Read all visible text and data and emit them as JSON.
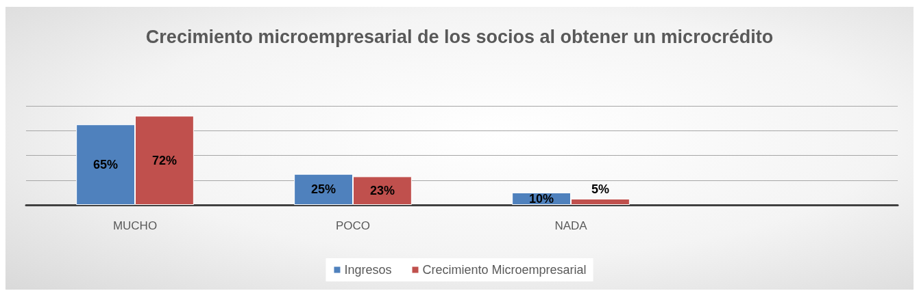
{
  "chart_data": {
    "type": "bar",
    "title": "Crecimiento microempresarial de los socios al obtener un microcrédito",
    "categories": [
      "MUCHO",
      "POCO",
      "NADA",
      null
    ],
    "series": [
      {
        "name": "Ingresos",
        "color": "#4f81bd",
        "values": [
          65,
          25,
          10,
          null
        ],
        "value_labels": [
          "65%",
          "25%",
          "10%",
          null
        ]
      },
      {
        "name": "Crecimiento Microempresarial",
        "color": "#c0504d",
        "values": [
          72,
          23,
          5,
          null
        ],
        "value_labels": [
          "72%",
          "23%",
          "5%",
          null
        ]
      }
    ],
    "ylim": [
      0,
      80
    ],
    "yticks": [
      {
        "value": 0,
        "label": null
      },
      {
        "value": 20,
        "label": null
      },
      {
        "value": 40,
        "label": null
      },
      {
        "value": 60,
        "label": null
      },
      {
        "value": 80,
        "label": null
      }
    ],
    "tick_labels": "x",
    "grid": "y",
    "legend": "bottom"
  }
}
